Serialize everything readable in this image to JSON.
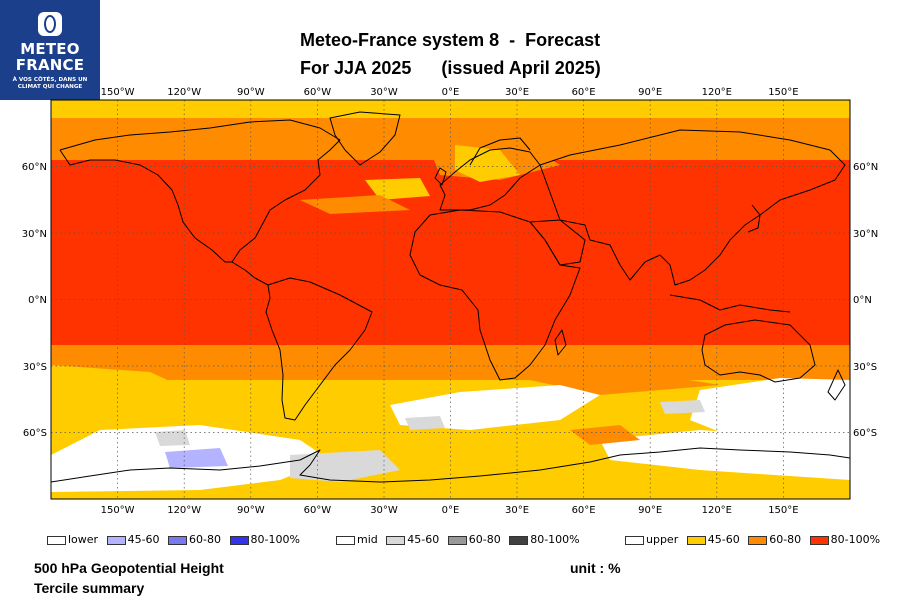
{
  "logo": {
    "line1": "METEO",
    "line2": "FRANCE",
    "tagline1": "À VOS CÔTÉS, DANS UN",
    "tagline2": "CLIMAT QUI CHANGE",
    "icon": "meteo-france-emblem-icon"
  },
  "title": {
    "line1": "Meteo-France system 8  -  Forecast",
    "line2": "For JJA 2025      (issued April 2025)"
  },
  "map": {
    "projection": "equirectangular",
    "longitude_range": [
      -180,
      180
    ],
    "latitude_range": [
      -90,
      90
    ],
    "gridlines": "dotted",
    "top_lon_labels": [
      "150°W",
      "120°W",
      "90°W",
      "60°W",
      "30°W",
      "0°E",
      "30°E",
      "60°E",
      "90°E",
      "120°E",
      "150°E"
    ],
    "bottom_lon_labels": [
      "150°W",
      "120°W",
      "90°W",
      "60°W",
      "30°W",
      "0°E",
      "30°E",
      "60°E",
      "90°E",
      "120°E",
      "150°E"
    ],
    "left_lat_labels": [
      "60°N",
      "30°N",
      "0°N",
      "30°S",
      "60°S"
    ],
    "right_lat_labels": [
      "60°N",
      "30°N",
      "0°N",
      "30°S",
      "60°S"
    ],
    "colors": {
      "upper_45_60": "#ffcc00",
      "upper_60_80": "#ff8c00",
      "upper_80_100": "#ff3300",
      "mid_45_60": "#d9d9d9",
      "mid_60_80": "#999999",
      "mid_80_100": "#404040",
      "lower_45_60": "#b3b3ff",
      "lower_60_80": "#7a7aee",
      "lower_80_100": "#3333ee",
      "coast": "#000000"
    }
  },
  "legend": {
    "lower": {
      "label": "lower",
      "b1": "45-60",
      "b2": "60-80",
      "b3": "80-100%"
    },
    "mid": {
      "label": "mid",
      "b1": "45-60",
      "b2": "60-80",
      "b3": "80-100%"
    },
    "upper": {
      "label": "upper",
      "b1": "45-60",
      "b2": "60-80",
      "b3": "80-100%"
    }
  },
  "footer": {
    "variable": "500 hPa Geopotential Height",
    "product": "Tercile summary",
    "unit": "unit : %"
  }
}
